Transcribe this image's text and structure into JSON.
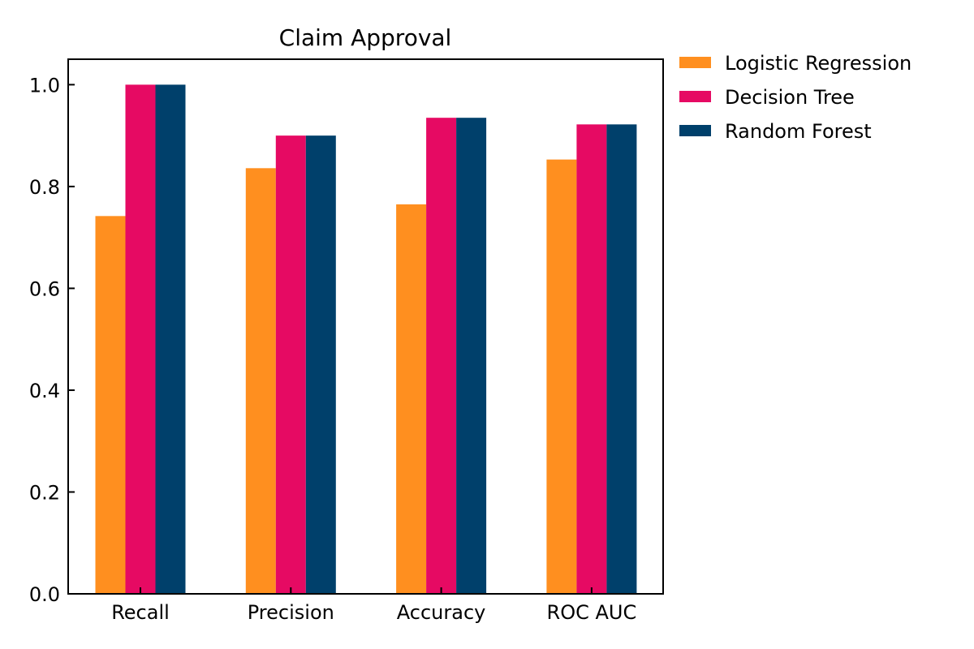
{
  "chart_data": {
    "type": "bar",
    "title": "Claim Approval",
    "xlabel": "",
    "ylabel": "",
    "categories": [
      "Recall",
      "Precision",
      "Accuracy",
      "ROC AUC"
    ],
    "series": [
      {
        "name": "Logistic Regression",
        "color": "#FF8F1F",
        "values": [
          0.742,
          0.836,
          0.765,
          0.853
        ]
      },
      {
        "name": "Decision Tree",
        "color": "#E60A63",
        "values": [
          1.0,
          0.9,
          0.935,
          0.922
        ]
      },
      {
        "name": "Random Forest",
        "color": "#00406B",
        "values": [
          1.0,
          0.9,
          0.935,
          0.922
        ]
      }
    ],
    "ylim": [
      0,
      1.05
    ],
    "yticks": [
      "0.0",
      "0.2",
      "0.4",
      "0.6",
      "0.8",
      "1.0"
    ],
    "grid": false,
    "legend_position": "outside-top-right"
  }
}
